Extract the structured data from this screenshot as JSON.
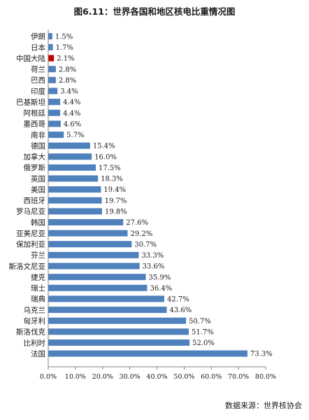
{
  "title": "图6.11：世界各国和地区核电比重情况图",
  "source_note": "数据来源：世界核协会",
  "colors": {
    "bar": "#4F81BD",
    "highlight_bar": "#C00000",
    "axis": "#808080"
  },
  "chart_data": {
    "type": "bar",
    "orientation": "horizontal",
    "title": "图6.11：世界各国和地区核电比重情况图",
    "xlim": [
      0,
      80
    ],
    "x_ticks": [
      0,
      10,
      20,
      30,
      40,
      50,
      60,
      70,
      80
    ],
    "x_tick_labels": [
      "0.0%",
      "10.0%",
      "20.0%",
      "30.0%",
      "40.0%",
      "50.0%",
      "60.0%",
      "70.0%",
      "80.0%"
    ],
    "grid": false,
    "highlight_category": "中国大陆",
    "categories": [
      "伊朗",
      "日本",
      "中国大陆",
      "荷兰",
      "巴西",
      "印度",
      "巴基斯坦",
      "阿根廷",
      "墨西哥",
      "南非",
      "德国",
      "加拿大",
      "俄罗斯",
      "英国",
      "美国",
      "西班牙",
      "罗马尼亚",
      "韩国",
      "亚美尼亚",
      "保加利亚",
      "芬兰",
      "斯洛文尼亚",
      "捷克",
      "瑞士",
      "瑞典",
      "乌克兰",
      "匈牙利",
      "斯洛伐克",
      "比利时",
      "法国"
    ],
    "values": [
      1.5,
      1.7,
      2.1,
      2.8,
      2.8,
      3.4,
      4.4,
      4.4,
      4.6,
      5.7,
      15.4,
      16.0,
      17.5,
      18.3,
      19.4,
      19.7,
      19.8,
      27.6,
      29.2,
      30.7,
      33.3,
      33.6,
      35.9,
      36.4,
      42.7,
      43.6,
      50.7,
      51.7,
      52.0,
      73.3
    ],
    "value_labels": [
      "1.5%",
      "1.7%",
      "2.1%",
      "2.8%",
      "2.8%",
      "3.4%",
      "4.4%",
      "4.4%",
      "4.6%",
      "5.7%",
      "15.4%",
      "16.0%",
      "17.5%",
      "18.3%",
      "19.4%",
      "19.7%",
      "19.8%",
      "27.6%",
      "29.2%",
      "30.7%",
      "33.3%",
      "33.6%",
      "35.9%",
      "36.4%",
      "42.7%",
      "43.6%",
      "50.7%",
      "51.7%",
      "52.0%",
      "73.3%"
    ]
  }
}
